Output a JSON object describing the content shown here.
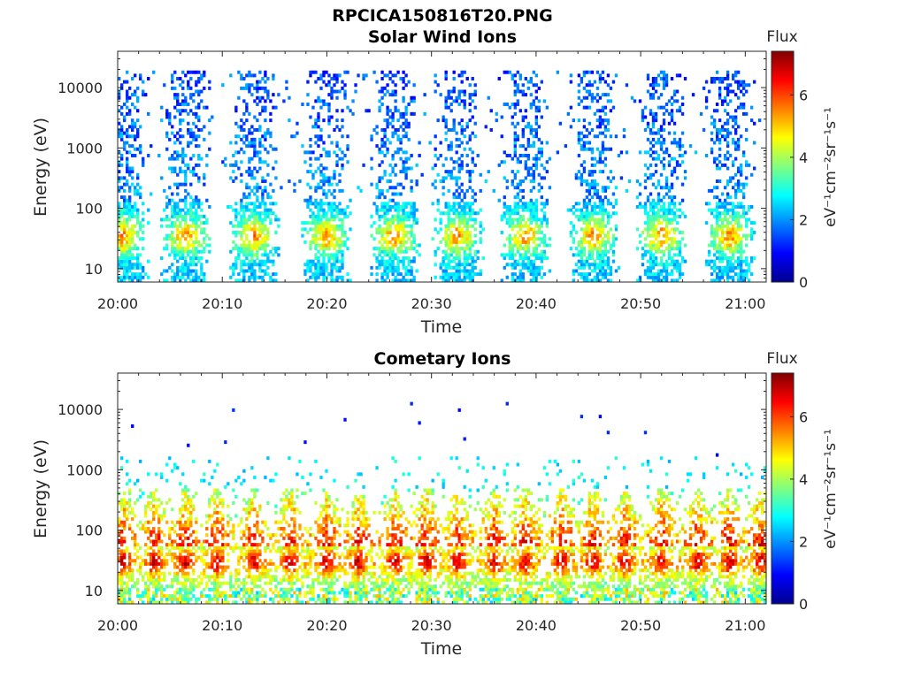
{
  "figure_title": "RPCICA150816T20.PNG",
  "chart_data": [
    {
      "type": "heatmap",
      "title": "Solar Wind Ions",
      "xlabel": "Time",
      "ylabel": "Energy (eV)",
      "x_ticks": [
        "20:00",
        "20:10",
        "20:20",
        "20:30",
        "20:40",
        "20:50",
        "21:00"
      ],
      "x_range_minutes": [
        0,
        62
      ],
      "y_scale": "log",
      "y_ticks": [
        "10",
        "100",
        "1000",
        "10000"
      ],
      "y_range": [
        6,
        40000
      ],
      "colorbar": {
        "label": "Flux",
        "units": "eV⁻¹cm⁻²sr⁻¹s⁻¹",
        "ticks": [
          "0",
          "2",
          "4",
          "6"
        ],
        "range": [
          0,
          7.4
        ],
        "colormap": "jet"
      },
      "description": "Quasi-periodic bursts roughly every 6.5 minutes; peak flux about 5-6 near 20-50 eV, sparse low flux (~1-2) up to ~20000 eV",
      "burst_centers_minutes": [
        0.5,
        6.5,
        13,
        20,
        26.5,
        32.5,
        39,
        45.5,
        52,
        58.5
      ],
      "peak_energy_eV": 35,
      "peak_flux": 5.8
    },
    {
      "type": "heatmap",
      "title": "Cometary Ions",
      "xlabel": "Time",
      "ylabel": "Energy (eV)",
      "x_ticks": [
        "20:00",
        "20:10",
        "20:20",
        "20:30",
        "20:40",
        "20:50",
        "21:00"
      ],
      "x_range_minutes": [
        0,
        62
      ],
      "y_scale": "log",
      "y_ticks": [
        "10",
        "100",
        "1000",
        "10000"
      ],
      "y_range": [
        6,
        40000
      ],
      "colorbar": {
        "label": "Flux",
        "units": "eV⁻¹cm⁻²sr⁻¹s⁻¹",
        "ticks": [
          "0",
          "2",
          "4",
          "6"
        ],
        "range": [
          0,
          7.4
        ],
        "colormap": "jet"
      },
      "description": "Intense bands (flux ~6-7) between ~15 and 45 eV throughout, with recurring bursts extending to a few hundred eV; sparse points up to ~10000 eV",
      "burst_centers_minutes": [
        0.5,
        3.5,
        6.5,
        9.5,
        13,
        16.5,
        20,
        23,
        26.5,
        29.5,
        32.5,
        36,
        39,
        42.5,
        45.5,
        48.5,
        52,
        55.5,
        58.5,
        61.5
      ],
      "peak_energy_eV": 30,
      "peak_flux": 7.0
    }
  ]
}
